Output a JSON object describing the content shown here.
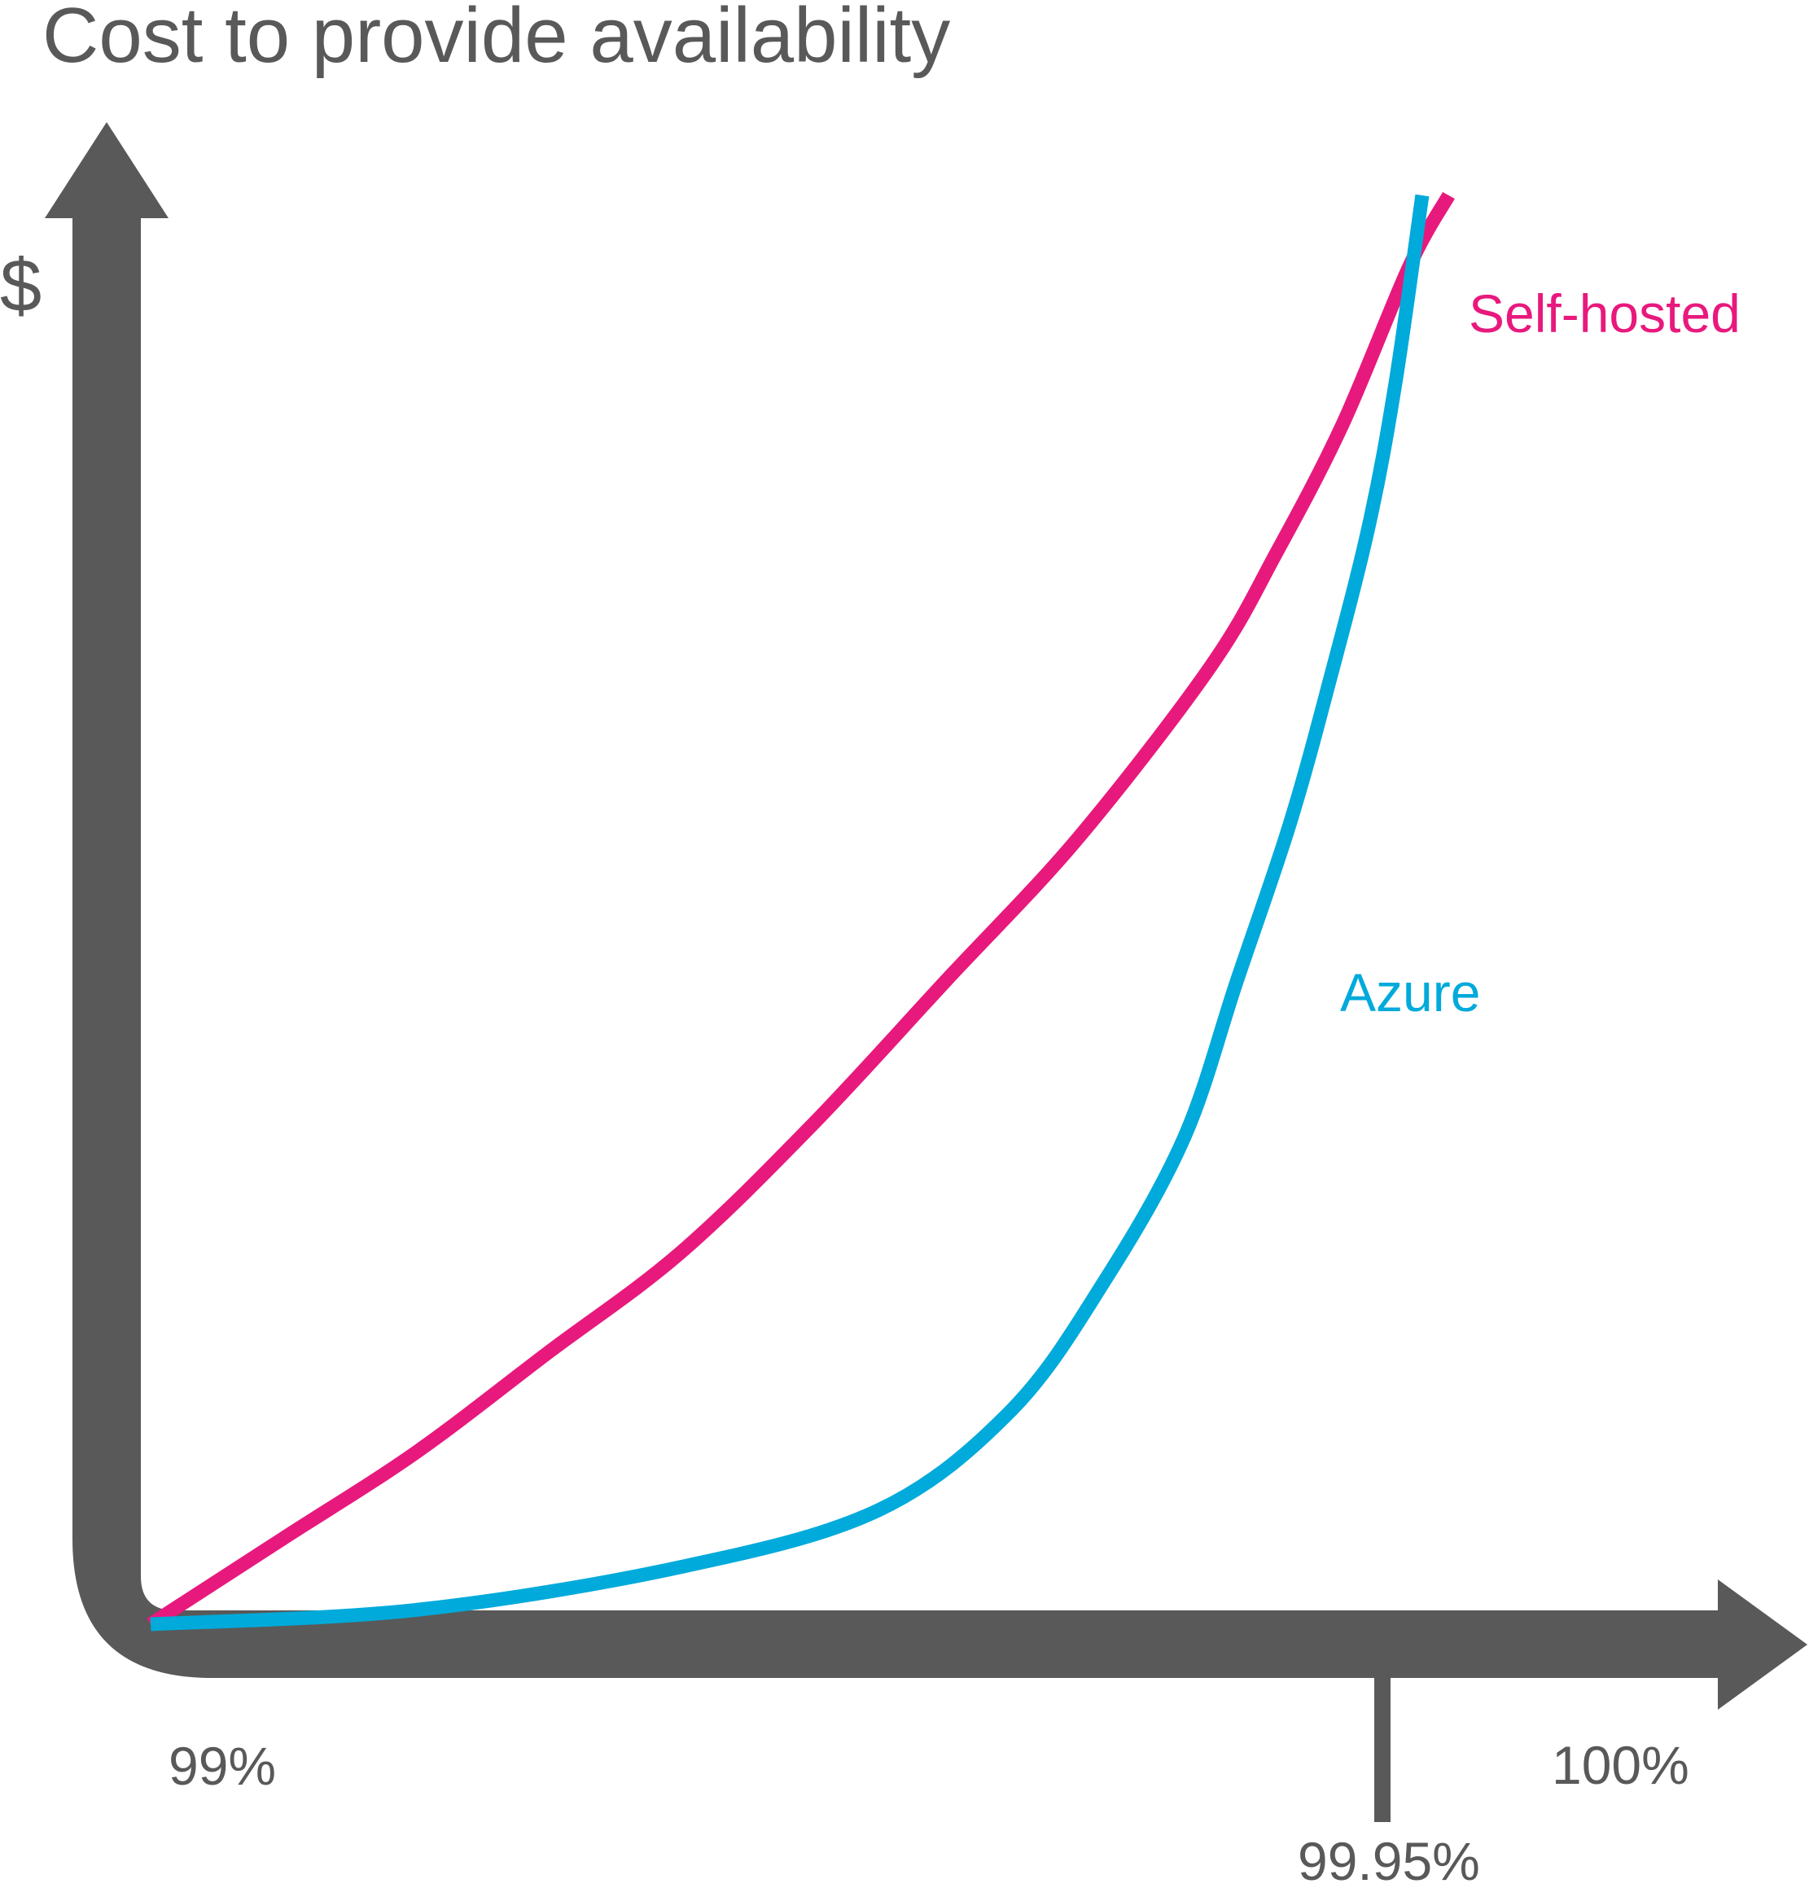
{
  "chart_data": {
    "type": "line",
    "title": "Cost to provide availability",
    "ylabel": "$",
    "xlabel": "",
    "x_ticks": [
      {
        "label": "99%",
        "value": 99.0
      },
      {
        "label": "99.95%",
        "value": 99.95
      },
      {
        "label": "100%",
        "value": 100.0
      }
    ],
    "xlim": [
      99.0,
      100.0
    ],
    "ylim": [
      0,
      1
    ],
    "grid": false,
    "legend": "inline labels next to curves",
    "axis_color": "#595959",
    "series": [
      {
        "name": "Self-hosted",
        "color": "#E8197D",
        "x": [
          99.0,
          99.1,
          99.2,
          99.3,
          99.4,
          99.5,
          99.6,
          99.7,
          99.8,
          99.85,
          99.9,
          99.95,
          99.98
        ],
        "y": [
          0.0,
          0.06,
          0.12,
          0.19,
          0.26,
          0.35,
          0.45,
          0.55,
          0.67,
          0.75,
          0.84,
          0.95,
          1.0
        ]
      },
      {
        "name": "Azure",
        "color": "#00AADB",
        "x": [
          99.0,
          99.2,
          99.4,
          99.55,
          99.65,
          99.72,
          99.78,
          99.82,
          99.86,
          99.89,
          99.92,
          99.94,
          99.96
        ],
        "y": [
          0.0,
          0.01,
          0.04,
          0.08,
          0.15,
          0.24,
          0.34,
          0.45,
          0.56,
          0.66,
          0.77,
          0.87,
          1.0
        ]
      }
    ]
  }
}
